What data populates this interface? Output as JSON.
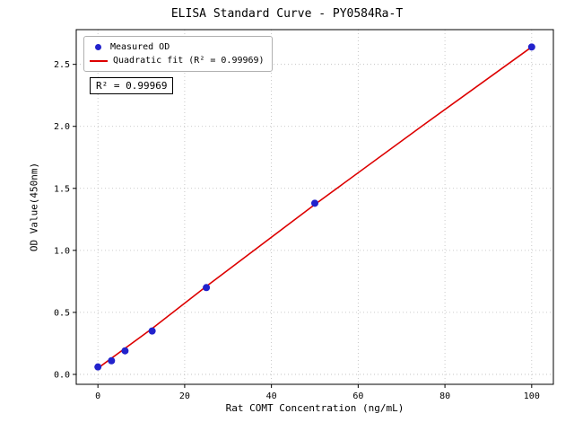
{
  "chart_data": {
    "type": "scatter",
    "title": "ELISA Standard Curve - PY0584Ra-T",
    "xlabel": "Rat COMT Concentration (ng/mL)",
    "ylabel": "OD Value(450nm)",
    "xlim": [
      -5,
      105
    ],
    "ylim": [
      -0.08,
      2.78
    ],
    "xticks": [
      0,
      20,
      40,
      60,
      80,
      100
    ],
    "xtick_labels": [
      "0",
      "20",
      "40",
      "60",
      "80",
      "100"
    ],
    "yticks": [
      0.0,
      0.5,
      1.0,
      1.5,
      2.0,
      2.5
    ],
    "ytick_labels": [
      "0.0",
      "0.5",
      "1.0",
      "1.5",
      "2.0",
      "2.5"
    ],
    "grid": true,
    "legend": [
      "Measured OD",
      "Quadratic fit (R² = 0.99969)"
    ],
    "annotation": "R² = 0.99969",
    "colors": {
      "points": "#2222cc",
      "fit_line": "#dd0000",
      "grid": "#bbbbbb",
      "axis": "#000000"
    },
    "series": [
      {
        "name": "Measured OD",
        "type": "scatter",
        "x": [
          0,
          3.125,
          6.25,
          12.5,
          25,
          50,
          100
        ],
        "y": [
          0.06,
          0.11,
          0.19,
          0.35,
          0.7,
          1.38,
          2.64
        ]
      },
      {
        "name": "Quadratic fit",
        "type": "line",
        "x": [
          0,
          12.5,
          25,
          50,
          75,
          100
        ],
        "y": [
          0.05,
          0.37,
          0.71,
          1.37,
          2.01,
          2.64
        ]
      }
    ]
  }
}
